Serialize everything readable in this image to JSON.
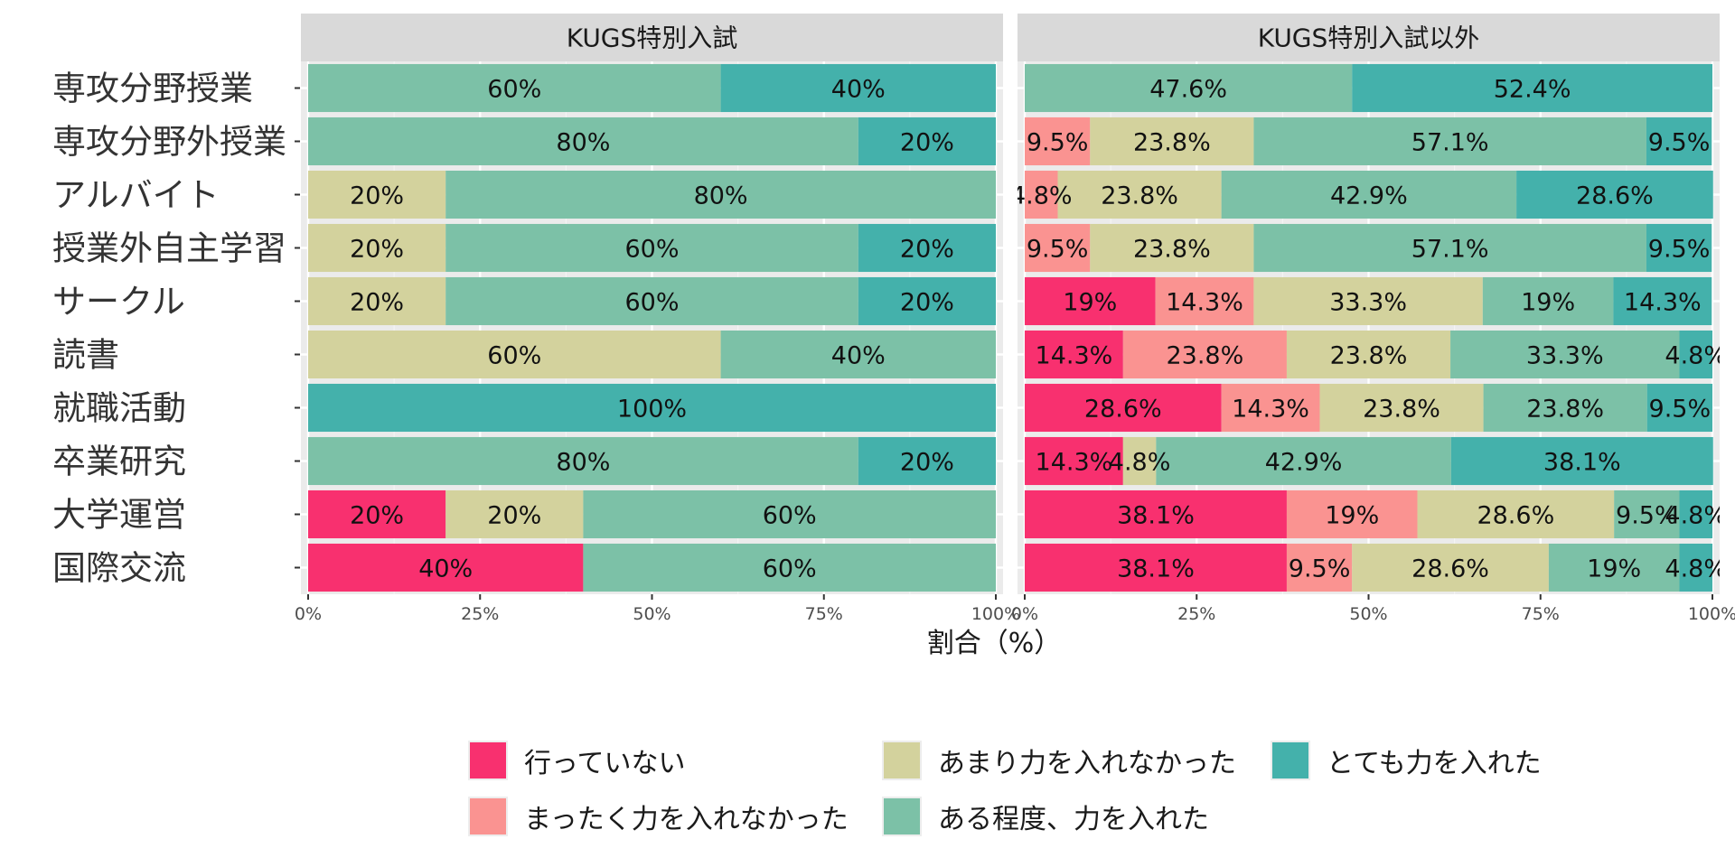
{
  "chart_data": {
    "type": "bar",
    "orientation": "horizontal-stacked-100",
    "categories": [
      "専攻分野授業",
      "専攻分野外授業",
      "アルバイト",
      "授業外自主学習",
      "サークル",
      "読書",
      "就職活動",
      "卒業研究",
      "大学運営",
      "国際交流"
    ],
    "xlabel": "割合（%）",
    "xticks": [
      "0%",
      "25%",
      "50%",
      "75%",
      "100%"
    ],
    "xlim": [
      0,
      100
    ],
    "grid": true,
    "legend_position": "bottom",
    "levels": [
      {
        "name": "行っていない",
        "color": "#F8306F"
      },
      {
        "name": "まったく力を入れなかった",
        "color": "#FA9391"
      },
      {
        "name": "あまり力を入れなかった",
        "color": "#D3D29D"
      },
      {
        "name": "ある程度、力を入れた",
        "color": "#7CC1A7"
      },
      {
        "name": "とても力を入れた",
        "color": "#44B1AB"
      }
    ],
    "panels": [
      {
        "title": "KUGS特別入試",
        "values": [
          [
            0,
            0,
            0,
            60,
            40
          ],
          [
            0,
            0,
            0,
            80,
            20
          ],
          [
            0,
            0,
            20,
            80,
            0
          ],
          [
            0,
            0,
            20,
            60,
            20
          ],
          [
            0,
            0,
            20,
            60,
            20
          ],
          [
            0,
            0,
            60,
            40,
            0
          ],
          [
            0,
            0,
            0,
            0,
            100
          ],
          [
            0,
            0,
            0,
            80,
            20
          ],
          [
            20,
            0,
            20,
            60,
            0
          ],
          [
            40,
            0,
            0,
            60,
            0
          ]
        ],
        "labels": [
          [
            "",
            "",
            "",
            "60%",
            "40%"
          ],
          [
            "",
            "",
            "",
            "80%",
            "20%"
          ],
          [
            "",
            "",
            "20%",
            "80%",
            ""
          ],
          [
            "",
            "",
            "20%",
            "60%",
            "20%"
          ],
          [
            "",
            "",
            "20%",
            "60%",
            "20%"
          ],
          [
            "",
            "",
            "60%",
            "40%",
            ""
          ],
          [
            "",
            "",
            "",
            "",
            "100%"
          ],
          [
            "",
            "",
            "",
            "80%",
            "20%"
          ],
          [
            "20%",
            "",
            "20%",
            "60%",
            ""
          ],
          [
            "40%",
            "",
            "",
            "60%",
            ""
          ]
        ]
      },
      {
        "title": "KUGS特別入試以外",
        "values": [
          [
            0,
            0,
            0,
            47.6,
            52.4
          ],
          [
            0,
            9.5,
            23.8,
            57.1,
            9.5
          ],
          [
            0,
            4.8,
            23.8,
            42.9,
            28.6
          ],
          [
            0,
            9.5,
            23.8,
            57.1,
            9.5
          ],
          [
            19,
            14.3,
            33.3,
            19,
            14.3
          ],
          [
            14.3,
            23.8,
            23.8,
            33.3,
            4.8
          ],
          [
            28.6,
            14.3,
            23.8,
            23.8,
            9.5
          ],
          [
            14.3,
            0,
            4.8,
            42.9,
            38.1
          ],
          [
            38.1,
            19,
            28.6,
            9.5,
            4.8
          ],
          [
            38.1,
            9.5,
            28.6,
            19,
            4.8
          ]
        ],
        "labels": [
          [
            "",
            "",
            "",
            "47.6%",
            "52.4%"
          ],
          [
            "",
            "9.5%",
            "23.8%",
            "57.1%",
            "9.5%"
          ],
          [
            "",
            "4.8%",
            "23.8%",
            "42.9%",
            "28.6%"
          ],
          [
            "",
            "9.5%",
            "23.8%",
            "57.1%",
            "9.5%"
          ],
          [
            "19%",
            "14.3%",
            "33.3%",
            "19%",
            "14.3%"
          ],
          [
            "14.3%",
            "23.8%",
            "23.8%",
            "33.3%",
            "4.8%"
          ],
          [
            "28.6%",
            "14.3%",
            "23.8%",
            "23.8%",
            "9.5%"
          ],
          [
            "14.3%",
            "",
            "4.8%",
            "42.9%",
            "38.1%"
          ],
          [
            "38.1%",
            "19%",
            "28.6%",
            "9.5%",
            "4.8%"
          ],
          [
            "38.1%",
            "9.5%",
            "28.6%",
            "19%",
            "4.8%"
          ]
        ]
      }
    ]
  }
}
